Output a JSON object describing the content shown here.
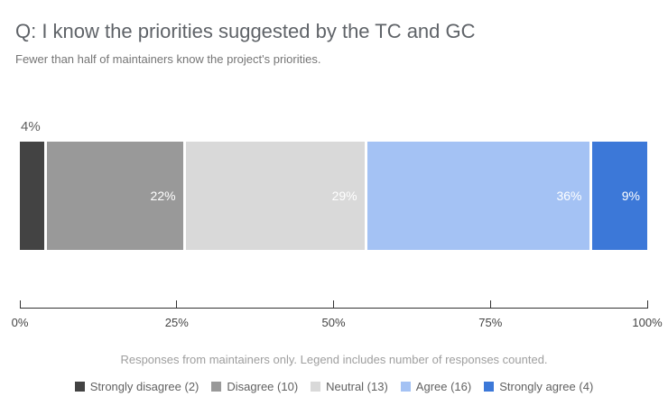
{
  "chart_data": {
    "type": "bar",
    "variant": "horizontal-stacked-100-percent",
    "title": "Q: I know the priorities suggested by the TC and GC",
    "subtitle": "Fewer than half of maintainers know the project's priorities.",
    "footnote": "Responses from maintainers only. Legend includes number of responses counted.",
    "series": [
      {
        "name": "Strongly disagree",
        "count": 2,
        "percent": 4,
        "label": "4%",
        "color": "#434343",
        "label_position": "outside"
      },
      {
        "name": "Disagree",
        "count": 10,
        "percent": 22,
        "label": "22%",
        "color": "#999999",
        "label_position": "inside"
      },
      {
        "name": "Neutral",
        "count": 13,
        "percent": 29,
        "label": "29%",
        "color": "#d9d9d9",
        "label_position": "inside"
      },
      {
        "name": "Agree",
        "count": 16,
        "percent": 36,
        "label": "36%",
        "color": "#a4c2f4",
        "label_position": "inside"
      },
      {
        "name": "Strongly agree",
        "count": 4,
        "percent": 9,
        "label": "9%",
        "color": "#3c78d8",
        "label_position": "inside"
      }
    ],
    "x_axis": {
      "range": [
        0,
        100
      ],
      "ticks": [
        "0%",
        "25%",
        "50%",
        "75%",
        "100%"
      ],
      "grid": false
    },
    "legend": {
      "position": "bottom",
      "items": [
        {
          "label": "Strongly disagree (2)",
          "color": "#434343"
        },
        {
          "label": "Disagree (10)",
          "color": "#999999"
        },
        {
          "label": "Neutral (13)",
          "color": "#d9d9d9"
        },
        {
          "label": "Agree (16)",
          "color": "#a4c2f4"
        },
        {
          "label": "Strongly agree (4)",
          "color": "#3c78d8"
        }
      ]
    }
  }
}
